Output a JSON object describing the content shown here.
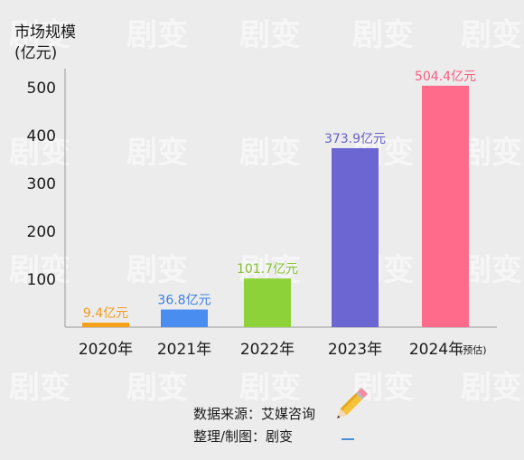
{
  "chart_data": {
    "type": "bar",
    "ylabel_line1": "市场规模",
    "ylabel_line2": "(亿元)",
    "yticks": [
      100,
      200,
      300,
      400,
      500
    ],
    "ylim": [
      0,
      540
    ],
    "categories": [
      "2020年",
      "2021年",
      "2022年",
      "2023年",
      "2024年"
    ],
    "category_note": "(预估)",
    "values": [
      9.4,
      36.8,
      101.7,
      373.9,
      504.4
    ],
    "data_labels": [
      "9.4亿元",
      "36.8亿元",
      "101.7亿元",
      "373.9亿元",
      "504.4亿元"
    ],
    "colors": [
      "#f6a01a",
      "#4a8df0",
      "#8ed23a",
      "#6b66d1",
      "#ff6b8b"
    ],
    "label_colors": [
      "#f39a1e",
      "#3d7fe0",
      "#86c232",
      "#6661c9",
      "#f65e82"
    ],
    "grid": false
  },
  "footer": {
    "source": "数据来源：艾媒咨询",
    "credit": "整理/制图：剧变"
  },
  "watermark": "剧变",
  "icons": {
    "pencil": "pencil-icon"
  }
}
